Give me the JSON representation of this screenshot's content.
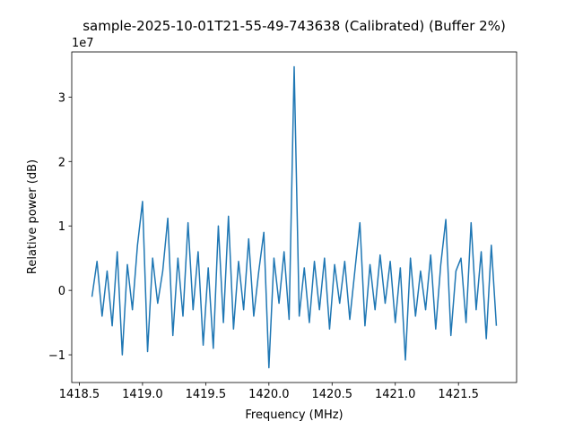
{
  "chart_data": {
    "type": "line",
    "title": "sample-2025-10-01T21-55-49-743638 (Calibrated) (Buffer 2%)",
    "x_label": "Frequency (MHz)",
    "y_label": "Relative power (dB)",
    "y_offset_label": "1e7",
    "color": "#1f77b4",
    "x": [
      1418.6,
      1418.64,
      1418.68,
      1418.72,
      1418.76,
      1418.8,
      1418.84,
      1418.88,
      1418.92,
      1418.96,
      1419,
      1419.04,
      1419.08,
      1419.12,
      1419.16,
      1419.2,
      1419.24,
      1419.28,
      1419.32,
      1419.36,
      1419.4,
      1419.44,
      1419.48,
      1419.52,
      1419.56,
      1419.6,
      1419.64,
      1419.68,
      1419.72,
      1419.76,
      1419.8,
      1419.84,
      1419.88,
      1419.92,
      1419.96,
      1420,
      1420.04,
      1420.08,
      1420.12,
      1420.16,
      1420.2,
      1420.24,
      1420.28,
      1420.32,
      1420.36,
      1420.4,
      1420.44,
      1420.48,
      1420.52,
      1420.56,
      1420.6,
      1420.64,
      1420.68,
      1420.72,
      1420.76,
      1420.8,
      1420.84,
      1420.88,
      1420.92,
      1420.96,
      1421,
      1421.04,
      1421.08,
      1421.12,
      1421.16,
      1421.2,
      1421.24,
      1421.28,
      1421.32,
      1421.36,
      1421.4,
      1421.44,
      1421.48,
      1421.52,
      1421.56,
      1421.6,
      1421.64,
      1421.68,
      1421.72,
      1421.76,
      1421.8
    ],
    "values": [
      -0.1,
      0.45,
      -0.4,
      0.3,
      -0.55,
      0.6,
      -1.0,
      0.4,
      -0.3,
      0.7,
      1.38,
      -0.95,
      0.5,
      -0.2,
      0.3,
      1.12,
      -0.7,
      0.5,
      -0.4,
      1.05,
      -0.3,
      0.6,
      -0.85,
      0.35,
      -0.9,
      1.0,
      -0.5,
      1.15,
      -0.6,
      0.45,
      -0.3,
      0.8,
      -0.4,
      0.3,
      0.9,
      -1.2,
      0.5,
      -0.2,
      0.6,
      -0.45,
      3.47,
      -0.4,
      0.35,
      -0.5,
      0.45,
      -0.3,
      0.5,
      -0.6,
      0.4,
      -0.2,
      0.45,
      -0.45,
      0.3,
      1.05,
      -0.55,
      0.4,
      -0.3,
      0.55,
      -0.2,
      0.45,
      -0.5,
      0.35,
      -1.08,
      0.5,
      -0.4,
      0.3,
      -0.3,
      0.55,
      -0.6,
      0.4,
      1.1,
      -0.7,
      0.3,
      0.5,
      -0.5,
      1.05,
      -0.3,
      0.6,
      -0.75,
      0.7,
      -0.55
    ],
    "xlim": [
      1418.44,
      1421.96
    ],
    "ylim": [
      -1.43,
      3.7
    ],
    "xticks": [
      1418.5,
      {
        "value": 1419,
        "label": "1419.0"
      },
      1419.5,
      {
        "value": 1420,
        "label": "1420.0"
      },
      1420.5,
      {
        "value": 1421,
        "label": "1421.0"
      },
      1421.5
    ],
    "yticks": [
      {
        "value": -1,
        "label": "−1"
      },
      0,
      1,
      2,
      3
    ]
  }
}
